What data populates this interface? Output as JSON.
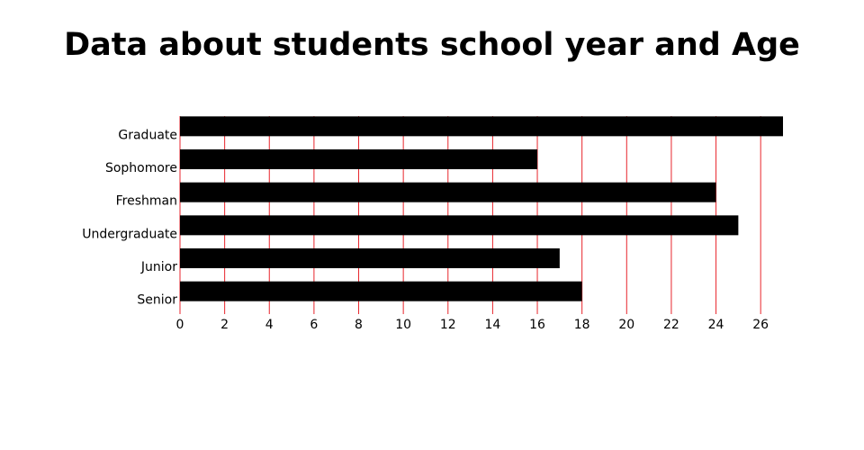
{
  "chart_data": {
    "type": "bar",
    "orientation": "horizontal",
    "title": "Data about students school year and Age",
    "xlabel": "",
    "ylabel": "",
    "categories": [
      "Graduate",
      "Sophomore",
      "Freshman",
      "Undergraduate",
      "Junior",
      "Senior"
    ],
    "values": [
      27,
      16,
      24,
      25,
      17,
      18
    ],
    "xlim": [
      0,
      27
    ],
    "xticks": [
      0,
      2,
      4,
      6,
      8,
      10,
      12,
      14,
      16,
      18,
      20,
      22,
      24,
      26
    ],
    "grid": "vertical",
    "legend": "none",
    "colors": {
      "bar": "#000000",
      "grid": "#e8262c",
      "text": "#000000"
    }
  }
}
